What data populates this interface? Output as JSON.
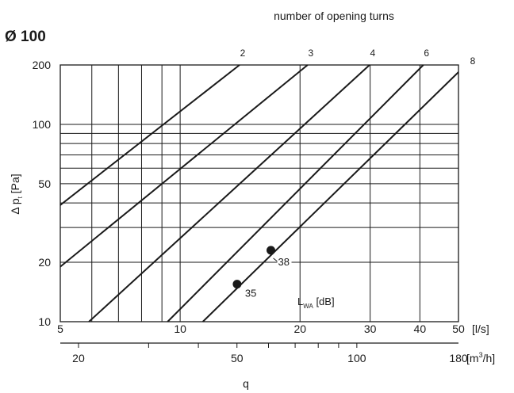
{
  "chart_data": {
    "type": "line",
    "header": "number of opening turns",
    "size_label": "Ø 100",
    "xscale": "log",
    "yscale": "log",
    "xlim": [
      5,
      50
    ],
    "ylim": [
      10,
      200
    ],
    "x_ticks": [
      "5",
      "10",
      "20",
      "30",
      "40",
      "50"
    ],
    "x_unit": "[l/s]",
    "x2_ticks": [
      "20",
      "50",
      "100",
      "180"
    ],
    "x2_unit_prefix": "[m",
    "x2_unit_sup": "3",
    "x2_unit_suffix": "/h]",
    "xlabel": "q",
    "y_ticks": [
      "10",
      "20",
      "50",
      "100",
      "200"
    ],
    "ylabel_prefix": "Δ p",
    "ylabel_sub": "t",
    "ylabel_suffix": " [Pa]",
    "series": [
      {
        "name": "2",
        "points": [
          [
            5,
            39
          ],
          [
            14.1,
            200
          ]
        ]
      },
      {
        "name": "3",
        "points": [
          [
            5,
            19
          ],
          [
            20.9,
            200
          ]
        ]
      },
      {
        "name": "4",
        "points": [
          [
            5.9,
            10
          ],
          [
            29.9,
            200
          ]
        ]
      },
      {
        "name": "6",
        "points": [
          [
            9.3,
            10
          ],
          [
            40.8,
            200
          ]
        ]
      },
      {
        "name": "8",
        "points": [
          [
            11.4,
            10
          ],
          [
            50,
            184
          ]
        ]
      }
    ],
    "marked_points": [
      {
        "label": "35",
        "x": 13.9,
        "y": 15.5
      },
      {
        "label": "38",
        "x": 16.9,
        "y": 23
      }
    ],
    "annotation": {
      "prefix": "L",
      "sub": "WA",
      "suffix": " [dB]"
    },
    "grid": true
  }
}
